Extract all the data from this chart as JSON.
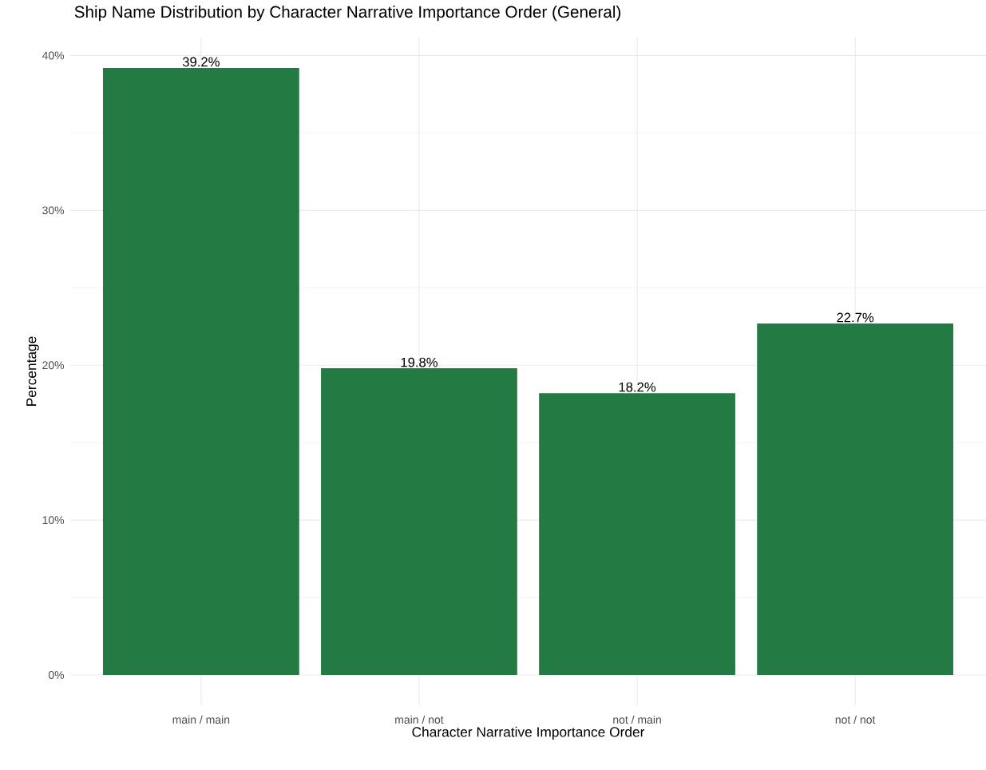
{
  "chart_data": {
    "type": "bar",
    "title": "Ship Name Distribution by Character Narrative Importance Order (General)",
    "xlabel": "Character Narrative Importance Order",
    "ylabel": "Percentage",
    "categories": [
      "main / main",
      "main / not",
      "not / main",
      "not / not"
    ],
    "values": [
      39.2,
      19.8,
      18.2,
      22.7
    ],
    "value_labels": [
      "39.2%",
      "19.8%",
      "18.2%",
      "22.7%"
    ],
    "color": "#237a43",
    "ylim": [
      -1.96,
      41.16
    ],
    "yticks": [
      {
        "value": 0,
        "label": "0%"
      },
      {
        "value": 10,
        "label": "10%"
      },
      {
        "value": 20,
        "label": "20%"
      },
      {
        "value": 30,
        "label": "30%"
      },
      {
        "value": 40,
        "label": "40%"
      }
    ],
    "grid": true
  }
}
